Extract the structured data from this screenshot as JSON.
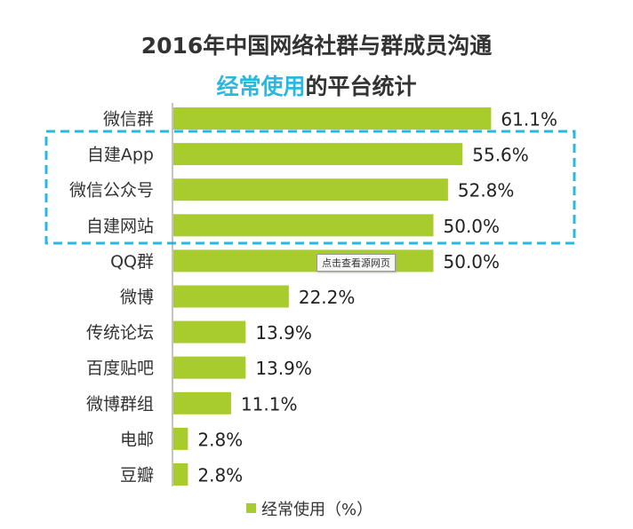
{
  "title_line1": "2016年中国网络社群与群成员沟通",
  "title_line2_highlight": "经常使用",
  "title_line2_rest": "的平台统计",
  "tooltip": "点击查看源网页",
  "colors": {
    "bar": "#a8cc2e",
    "highlight_text": "#2ab8e0",
    "dashed_box": "#2ab8e0"
  },
  "chart_data": {
    "type": "bar",
    "orientation": "horizontal",
    "categories": [
      "微信群",
      "自建App",
      "微信公众号",
      "自建网站",
      "QQ群",
      "微博",
      "传统论坛",
      "百度贴吧",
      "微博群组",
      "电邮",
      "豆瓣"
    ],
    "series": [
      {
        "name": "经常使用（%）",
        "values": [
          61.1,
          55.6,
          52.8,
          50.0,
          50.0,
          22.2,
          13.9,
          13.9,
          11.1,
          2.8,
          2.8
        ]
      }
    ],
    "value_labels": [
      "61.1%",
      "55.6%",
      "52.8%",
      "50.0%",
      "50.0%",
      "22.2%",
      "13.9%",
      "13.9%",
      "11.1%",
      "2.8%",
      "2.8%"
    ],
    "highlighted_categories": [
      "自建App",
      "微信公众号",
      "自建网站"
    ],
    "legend_position": "bottom",
    "grid": false
  }
}
